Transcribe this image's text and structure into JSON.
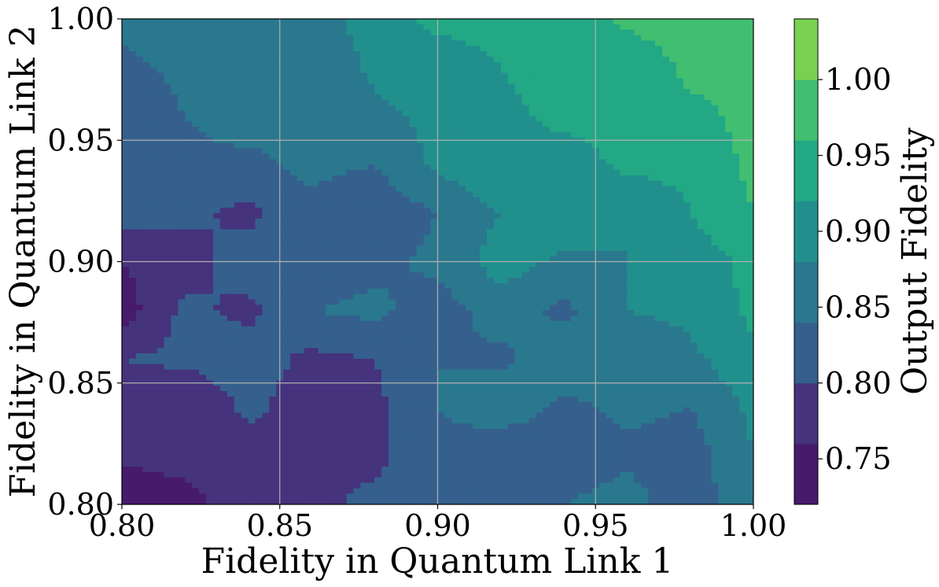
{
  "chart_data": {
    "type": "heatmap",
    "title": "",
    "xlabel": "Fidelity in Quantum Link 1",
    "ylabel": "Fidelity in Quantum Link 2",
    "colorbar_label": "Output Fidelity",
    "xlim": [
      0.8,
      1.0
    ],
    "ylim": [
      0.8,
      1.0
    ],
    "x_ticks": [
      "0.80",
      "0.85",
      "0.90",
      "0.95",
      "1.00"
    ],
    "y_ticks": [
      "0.80",
      "0.85",
      "0.90",
      "0.95",
      "1.00"
    ],
    "colorbar_range": [
      0.72,
      1.04
    ],
    "colorbar_ticks": [
      "0.75",
      "0.80",
      "0.85",
      "0.90",
      "0.95",
      "1.00"
    ],
    "levels": [
      0.72,
      0.76,
      0.8,
      0.84,
      0.88,
      0.92,
      0.96,
      1.0,
      1.04
    ],
    "level_colors": [
      "#481a6c",
      "#45337d",
      "#35608d",
      "#2a788e",
      "#21908d",
      "#22a884",
      "#42be71",
      "#7ad151",
      "#dde318"
    ],
    "grid": true,
    "x": [
      0.8,
      0.82,
      0.84,
      0.86,
      0.88,
      0.9,
      0.92,
      0.94,
      0.96,
      0.98,
      1.0
    ],
    "y": [
      0.8,
      0.82,
      0.84,
      0.86,
      0.88,
      0.9,
      0.92,
      0.94,
      0.96,
      0.98,
      1.0
    ],
    "z": [
      [
        0.72,
        0.74,
        0.79,
        0.79,
        0.81,
        0.83,
        0.82,
        0.84,
        0.86,
        0.81,
        0.88
      ],
      [
        0.77,
        0.78,
        0.78,
        0.79,
        0.79,
        0.83,
        0.8,
        0.81,
        0.83,
        0.82,
        0.88
      ],
      [
        0.78,
        0.76,
        0.81,
        0.78,
        0.79,
        0.84,
        0.87,
        0.83,
        0.85,
        0.84,
        0.89
      ],
      [
        0.8,
        0.81,
        0.82,
        0.79,
        0.8,
        0.84,
        0.83,
        0.87,
        0.85,
        0.87,
        0.91
      ],
      [
        0.74,
        0.81,
        0.79,
        0.84,
        0.85,
        0.82,
        0.86,
        0.83,
        0.88,
        0.89,
        0.93
      ],
      [
        0.76,
        0.78,
        0.82,
        0.8,
        0.83,
        0.85,
        0.9,
        0.87,
        0.88,
        0.9,
        0.93
      ],
      [
        0.82,
        0.81,
        0.79,
        0.83,
        0.81,
        0.84,
        0.88,
        0.92,
        0.88,
        0.92,
        0.96
      ],
      [
        0.8,
        0.83,
        0.83,
        0.85,
        0.84,
        0.89,
        0.92,
        0.9,
        0.93,
        0.93,
        0.97
      ],
      [
        0.81,
        0.84,
        0.86,
        0.84,
        0.87,
        0.89,
        0.91,
        0.93,
        0.93,
        0.95,
        0.97
      ],
      [
        0.83,
        0.85,
        0.86,
        0.84,
        0.89,
        0.9,
        0.92,
        0.94,
        0.93,
        0.97,
        0.97
      ],
      [
        0.85,
        0.86,
        0.87,
        0.86,
        0.9,
        0.93,
        0.93,
        0.93,
        0.97,
        0.98,
        0.98
      ]
    ]
  }
}
